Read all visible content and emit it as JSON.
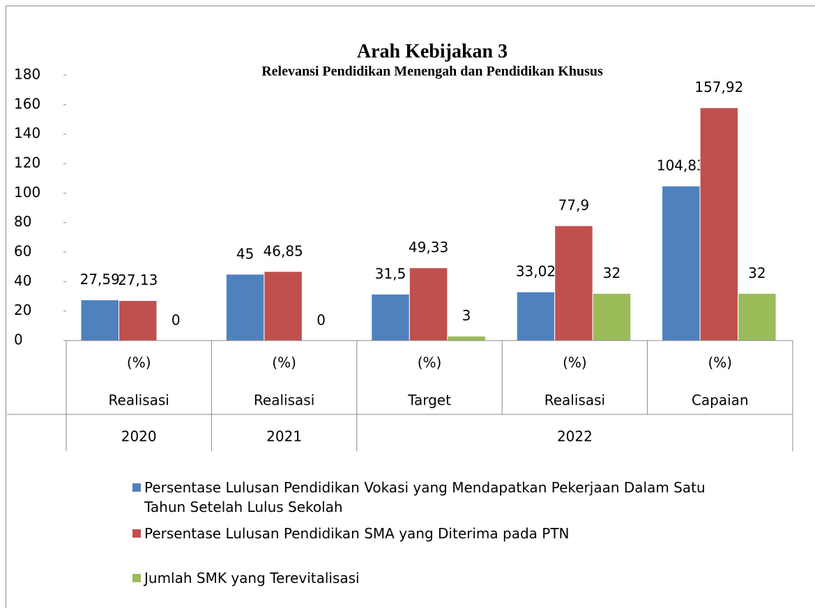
{
  "chart_data": {
    "type": "bar",
    "title": "Arah Kebijakan 3",
    "subtitle": "Relevansi Pendidikan Menengah dan Pendidikan Khusus",
    "categories": [
      "(%)",
      "(%)",
      "(%)",
      "(%)",
      "(%)"
    ],
    "category_labels": [
      "Realisasi",
      "Realisasi",
      "Target",
      "Realisasi",
      "Capaian"
    ],
    "x_groups": [
      {
        "label": "2020",
        "count": 1
      },
      {
        "label": "2021",
        "count": 1
      },
      {
        "label": "2022",
        "count": 3
      }
    ],
    "series": [
      {
        "name": "Persentase Lulusan Pendidikan Vokasi yang Mendapatkan Pekerjaan Dalam Satu Tahun Setelah Lulus Sekolah",
        "color": "#4f81bd",
        "values": [
          27.59,
          45,
          31.5,
          33.02,
          104.83
        ],
        "value_labels": [
          "27,59",
          "45",
          "31,5",
          "33,02",
          "104,83"
        ]
      },
      {
        "name": "Persentase Lulusan Pendidikan SMA yang Diterima pada PTN",
        "color": "#c0504d",
        "values": [
          27.13,
          46.85,
          49.33,
          77.9,
          157.92
        ],
        "value_labels": [
          "27,13",
          "46,85",
          "49,33",
          "77,9",
          "157,92"
        ]
      },
      {
        "name": "Jumlah SMK yang Terevitalisasi",
        "color": "#9bbb59",
        "values": [
          0,
          0,
          3,
          32,
          32
        ]
      }
    ],
    "ylim": [
      0,
      180
    ],
    "yticks": [
      0,
      20,
      40,
      60,
      80,
      100,
      120,
      140,
      160,
      180
    ],
    "grid": false,
    "legend": "bottom"
  }
}
